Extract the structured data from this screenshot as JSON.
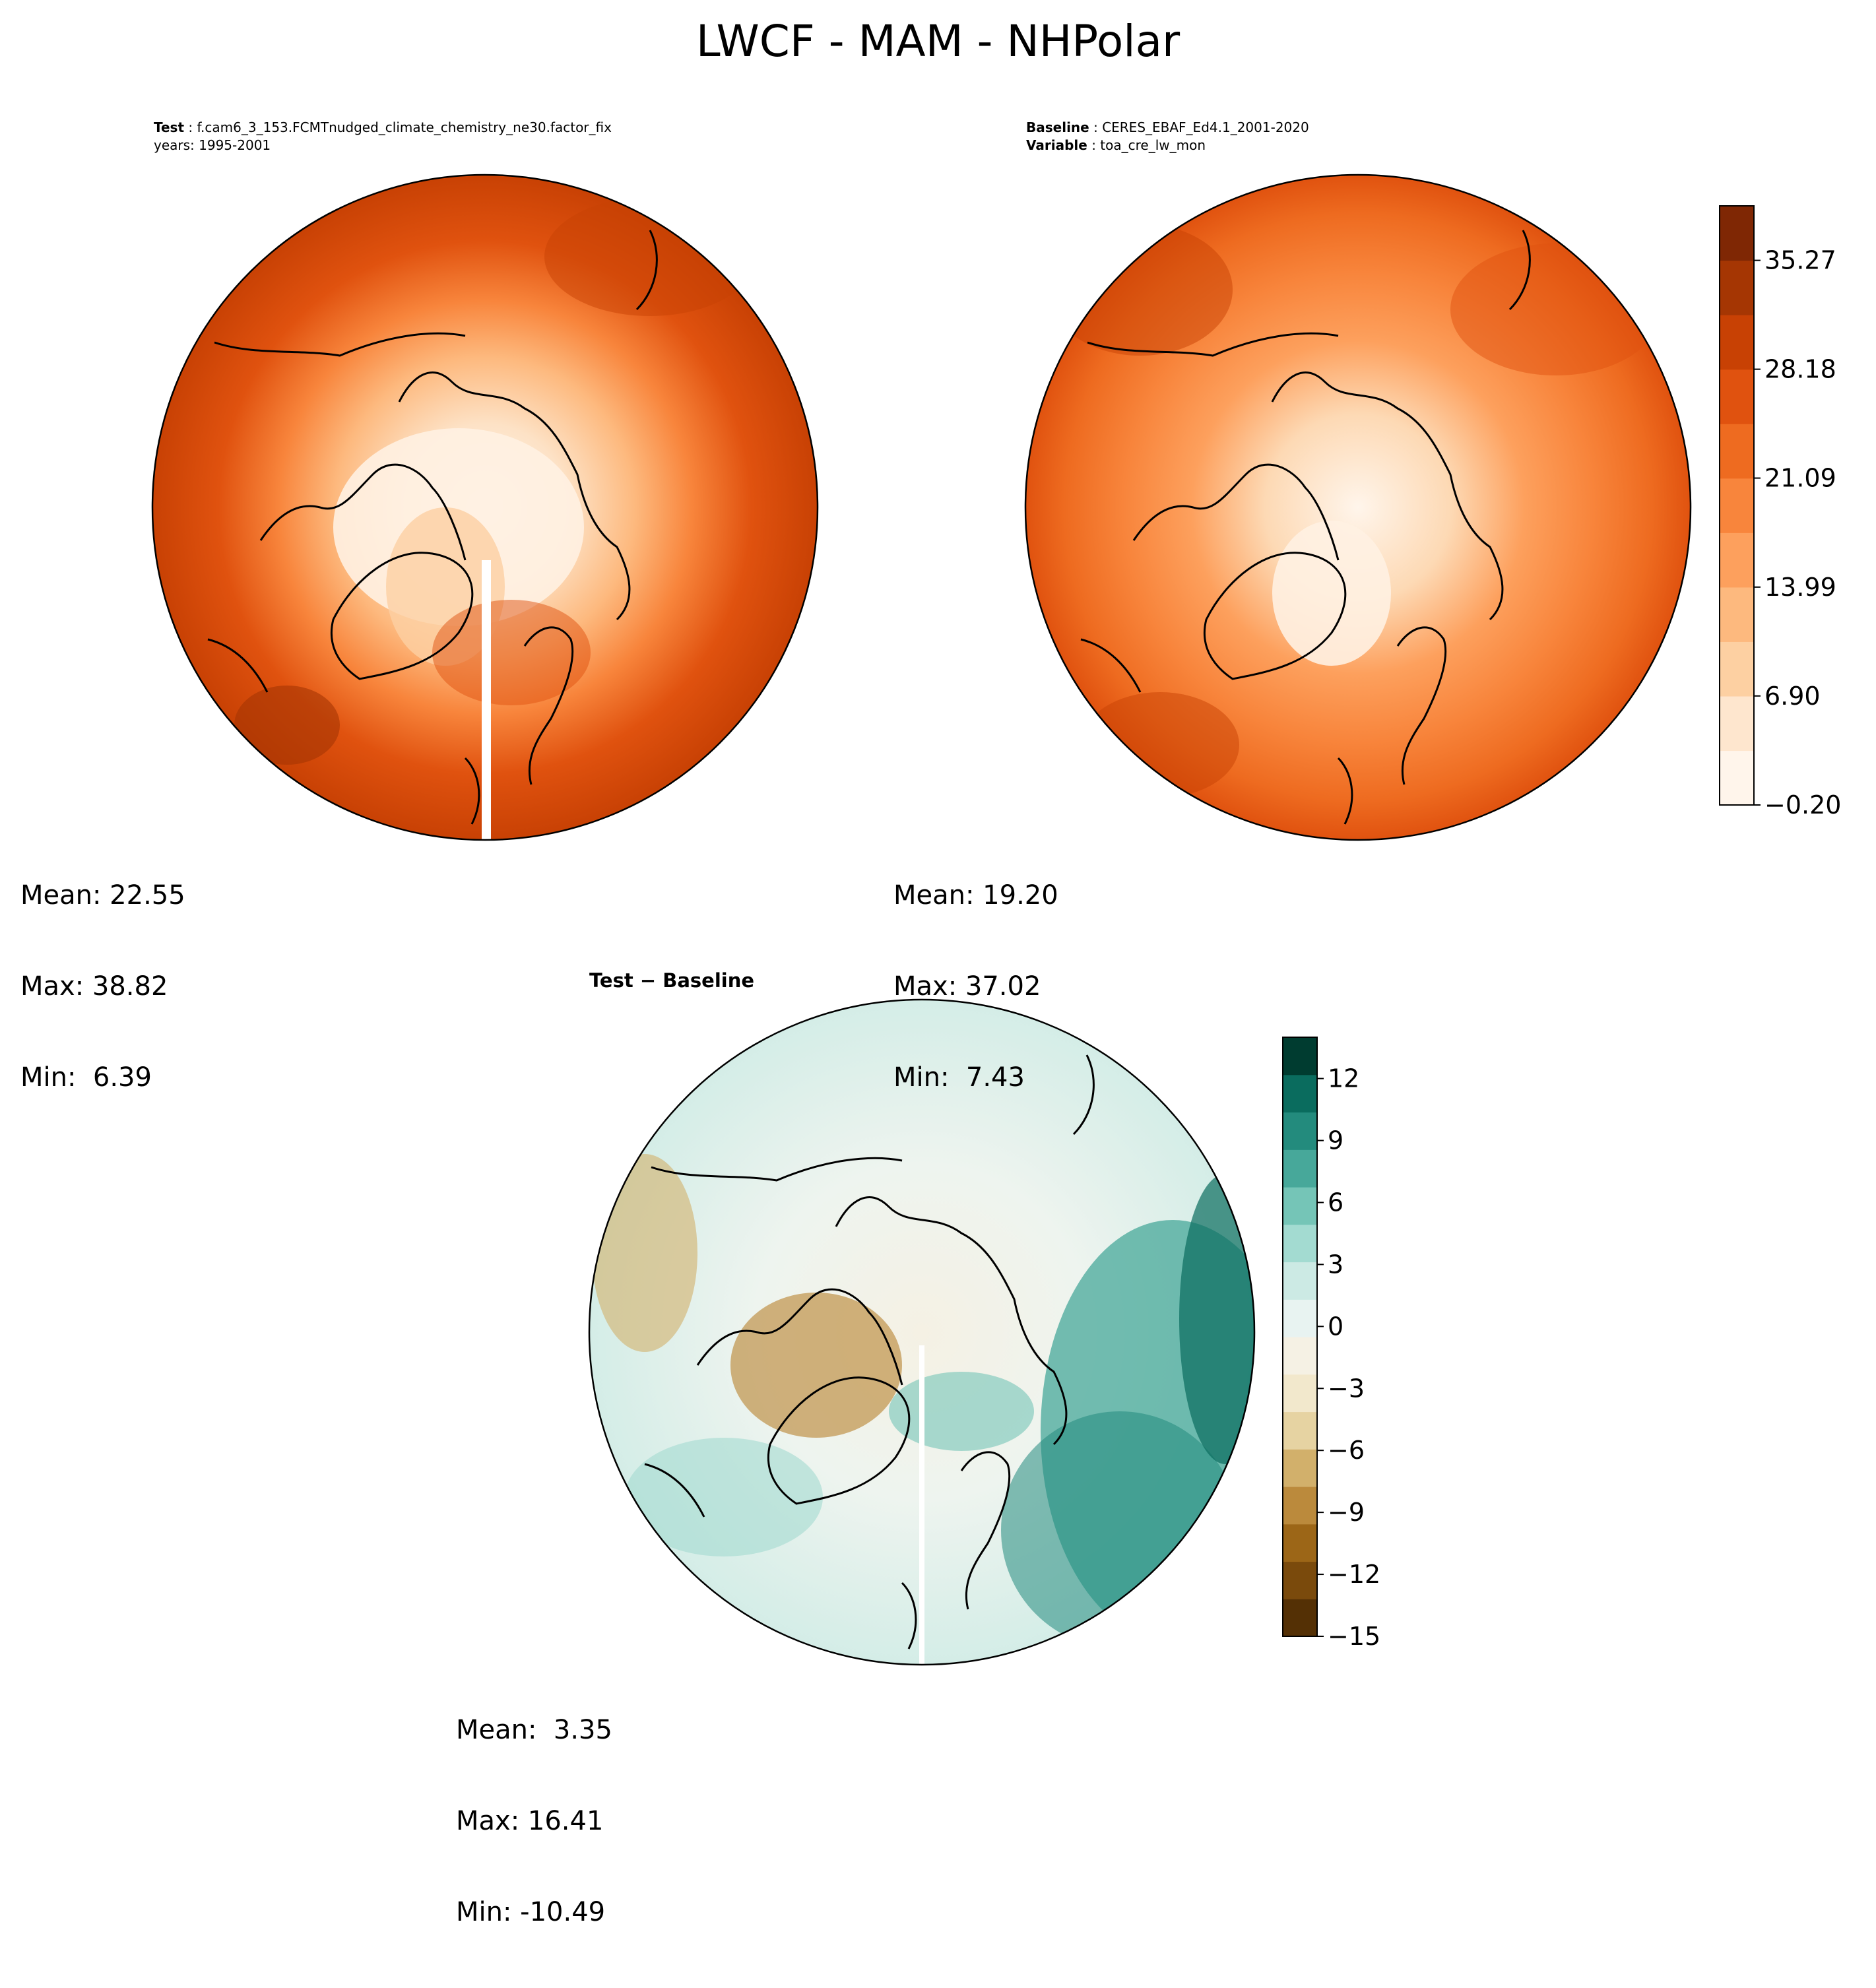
{
  "title": "LWCF - MAM - NHPolar",
  "panels": [
    {
      "id": "test",
      "meta": [
        {
          "label": "Test",
          "value": "f.cam6_3_153.FCMTnudged_climate_chemistry_ne30.factor_fix"
        },
        {
          "label": "",
          "value": "years: 1995-2001"
        }
      ],
      "stats": {
        "mean": "Mean: 22.55",
        "max": "Max: 38.82",
        "min": "Min:  6.39"
      }
    },
    {
      "id": "baseline",
      "meta": [
        {
          "label": "Baseline",
          "value": "CERES_EBAF_Ed4.1_2001-2020"
        },
        {
          "label": "Variable",
          "value": "toa_cre_lw_mon"
        }
      ],
      "stats": {
        "mean": "Mean: 19.20",
        "max": "Max: 37.02",
        "min": "Min:  7.43"
      }
    },
    {
      "id": "diff",
      "title": "Test − Baseline",
      "stats": {
        "mean": "Mean:  3.35",
        "max": "Max: 16.41",
        "min": "Min: -10.49"
      }
    }
  ],
  "colorbars": {
    "main": {
      "ticks": [
        "−0.20",
        "6.90",
        "13.99",
        "21.09",
        "28.18",
        "35.27"
      ],
      "tick_values": [
        -0.2,
        6.9,
        13.99,
        21.09,
        28.18,
        35.27
      ],
      "range": [
        -0.2,
        38.82
      ],
      "colors": [
        "#fff5eb",
        "#fee6ce",
        "#fdd0a2",
        "#fdb97e",
        "#fda05d",
        "#f8853c",
        "#ee6b20",
        "#e0520f",
        "#c84104",
        "#a53603",
        "#7f2704"
      ]
    },
    "diff": {
      "ticks": [
        "12",
        "9",
        "6",
        "3",
        "0",
        "−3",
        "−6",
        "−9",
        "−12",
        "−15"
      ],
      "tick_values": [
        12,
        9,
        6,
        3,
        0,
        -3,
        -6,
        -9,
        -12,
        -15
      ],
      "range": [
        -15,
        14
      ],
      "colors": [
        "#543005",
        "#7a4a0c",
        "#9c6617",
        "#bb8a3c",
        "#d2b06b",
        "#e6d3a2",
        "#f2e8cc",
        "#f5f1e4",
        "#e8f3f1",
        "#cceae4",
        "#a3dbd1",
        "#75c5b7",
        "#47a89a",
        "#238b7d",
        "#0a6c5e",
        "#003c30"
      ]
    }
  },
  "map_colors": {
    "coast": "#000000"
  }
}
